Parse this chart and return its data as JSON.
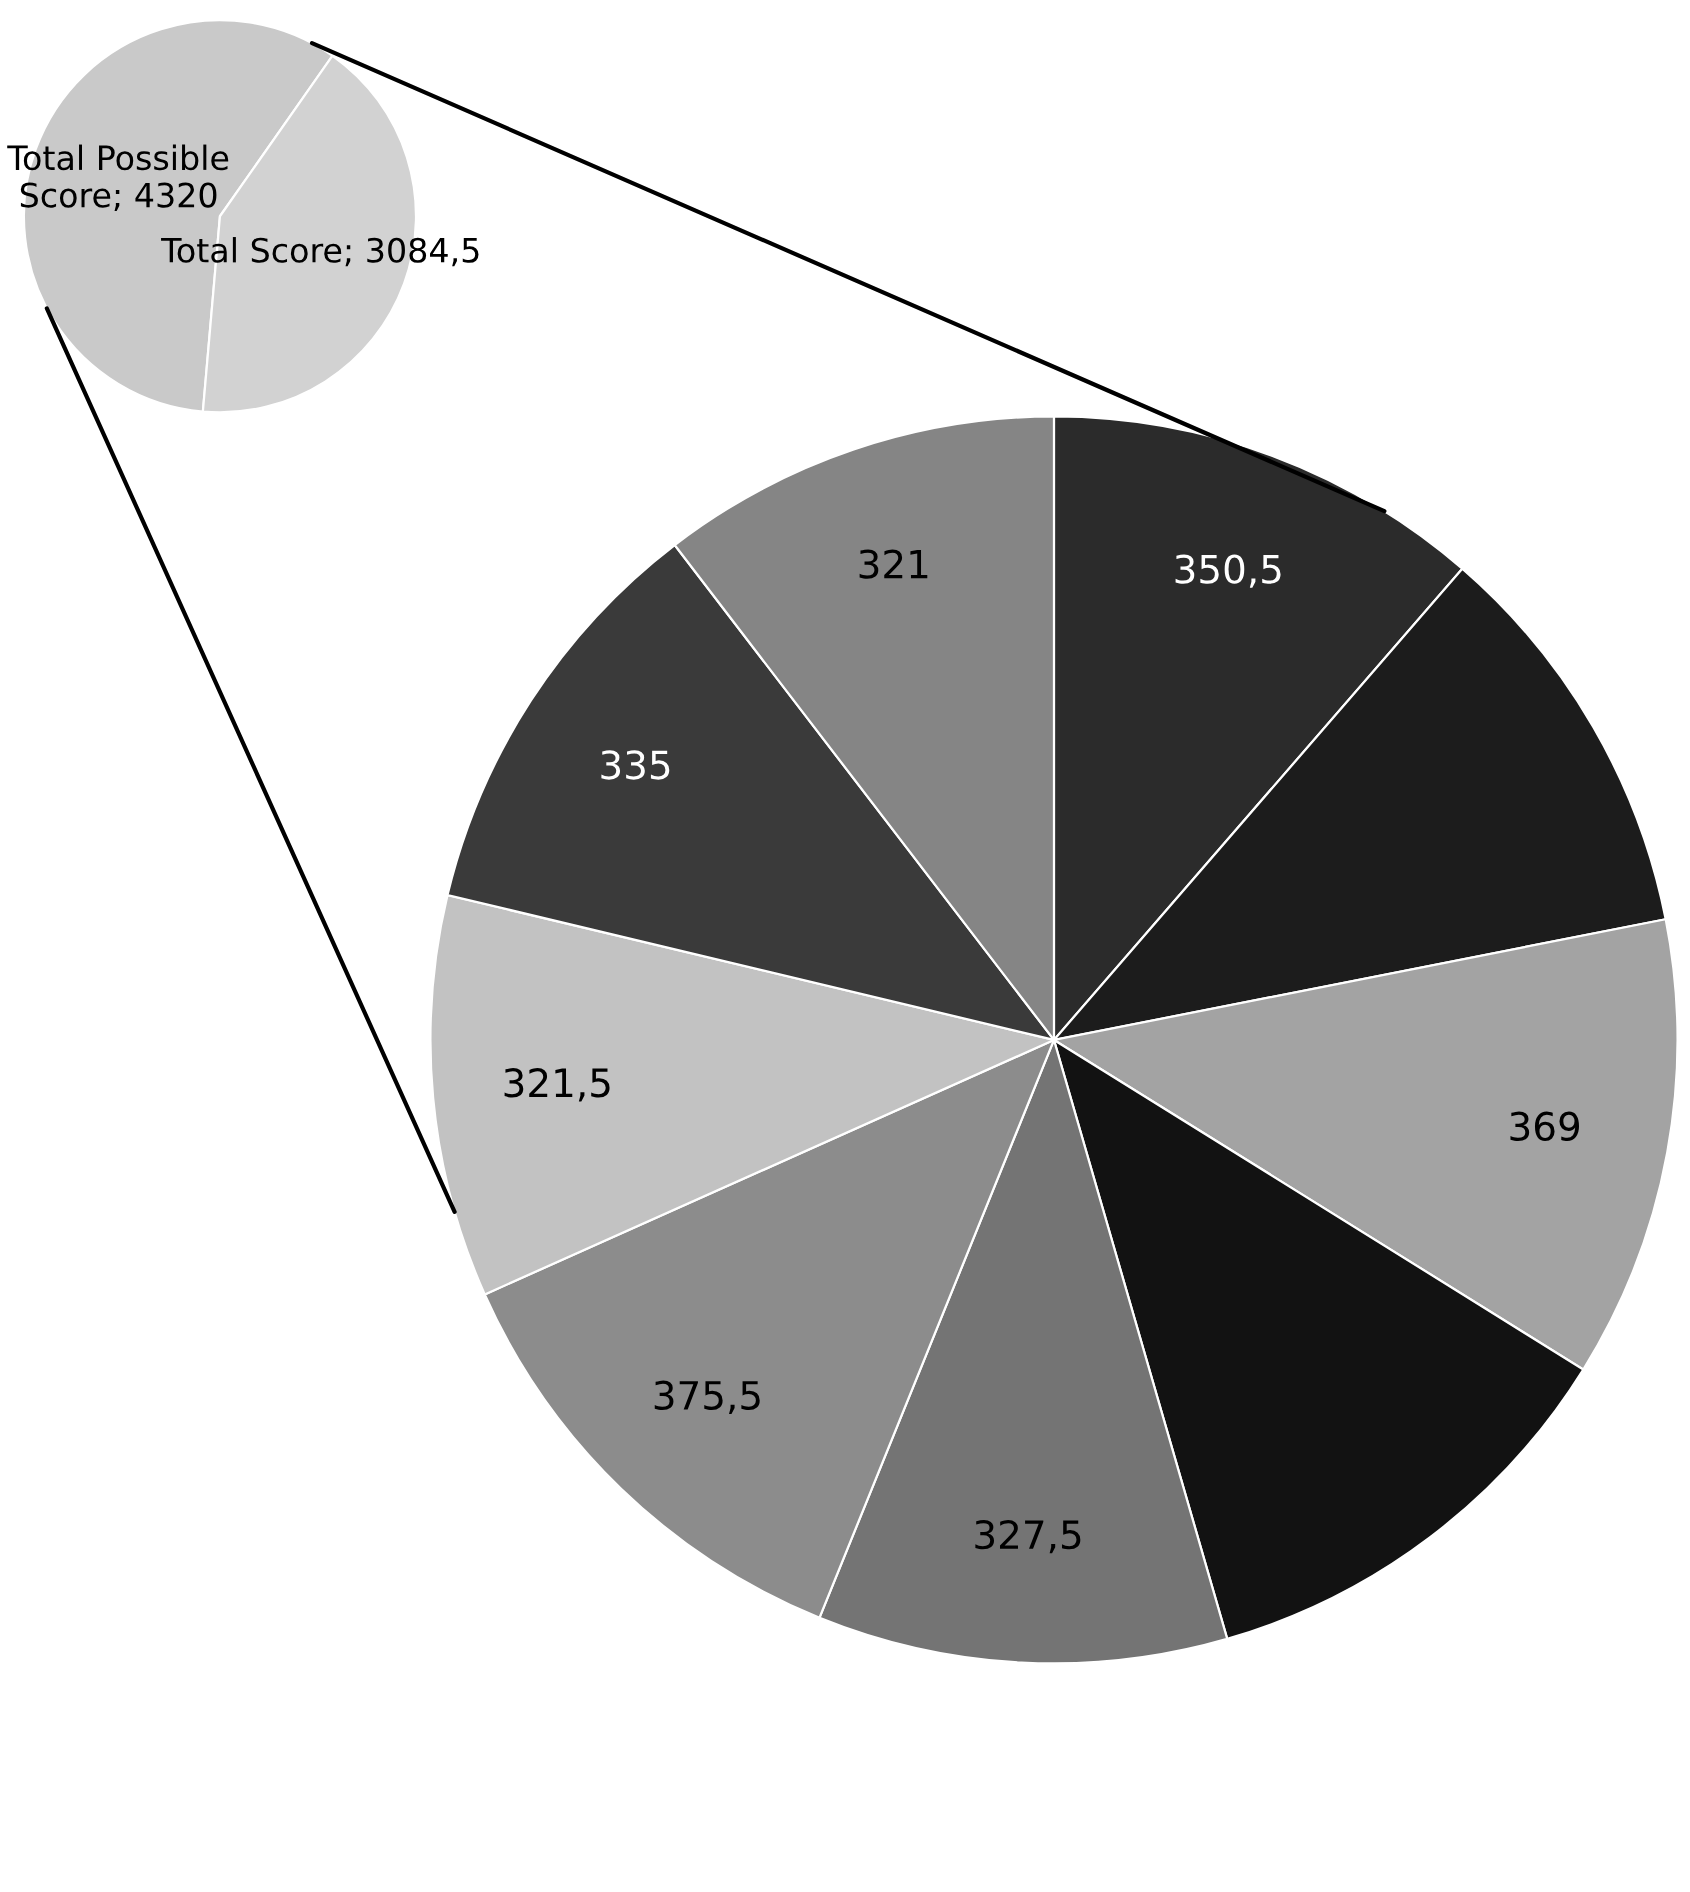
{
  "chart_data": [
    {
      "type": "pie",
      "categories": [
        "Total Possible Score",
        "Total Score"
      ],
      "values": [
        4320,
        3084.5
      ],
      "colors": [
        "#c9c9c9",
        "#d2d2d2"
      ],
      "value_labels": [
        "4320",
        "3084,5"
      ]
    },
    {
      "type": "pie",
      "categories": [
        null,
        null,
        null,
        null,
        null,
        null,
        null,
        null,
        null
      ],
      "values": [
        350.5,
        325,
        369,
        359.5,
        327.5,
        375.5,
        321.5,
        335,
        321
      ],
      "colors": [
        "#2b2b2b",
        "#1c1c1c",
        "#a3a3a3",
        "#121212",
        "#747474",
        "#8c8c8c",
        "#c2c2c2",
        "#3a3a3a",
        "#858585"
      ],
      "value_labels": [
        "350,5",
        null,
        "369",
        null,
        "327,5",
        "375,5",
        "321,5",
        "335",
        "321"
      ]
    }
  ]
}
